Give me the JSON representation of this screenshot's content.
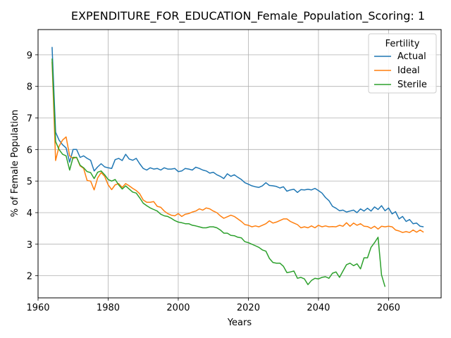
{
  "chart_data": {
    "type": "line",
    "title": "EXPENDITURE_FOR_EDUCATION_Female_Population_Scoring: 1",
    "xlabel": "Years",
    "ylabel": "% of Female Population",
    "xlim": [
      1960,
      2075
    ],
    "ylim": [
      1.3,
      9.8
    ],
    "xticks": [
      1960,
      1980,
      2000,
      2020,
      2040,
      2060
    ],
    "yticks": [
      2,
      3,
      4,
      5,
      6,
      7,
      8,
      9
    ],
    "grid": true,
    "legend": {
      "title": "Fertility",
      "placement": "top-right"
    },
    "series": [
      {
        "name": "Actual",
        "color": "#1f77b4",
        "points": [
          [
            1964,
            9.25
          ],
          [
            1965,
            6.55
          ],
          [
            1966,
            6.3
          ],
          [
            1967,
            6.15
          ],
          [
            1968,
            6.05
          ],
          [
            1969,
            5.6
          ],
          [
            1970,
            6.0
          ],
          [
            1971,
            6.0
          ],
          [
            1972,
            5.75
          ],
          [
            1973,
            5.8
          ],
          [
            1974,
            5.72
          ],
          [
            1975,
            5.66
          ],
          [
            1976,
            5.32
          ],
          [
            1977,
            5.45
          ],
          [
            1978,
            5.55
          ],
          [
            1979,
            5.45
          ],
          [
            1980,
            5.42
          ],
          [
            1981,
            5.4
          ],
          [
            1982,
            5.68
          ],
          [
            1983,
            5.72
          ],
          [
            1984,
            5.65
          ],
          [
            1985,
            5.85
          ],
          [
            1986,
            5.7
          ],
          [
            1987,
            5.66
          ],
          [
            1988,
            5.72
          ],
          [
            1989,
            5.55
          ],
          [
            1990,
            5.4
          ],
          [
            1991,
            5.35
          ],
          [
            1992,
            5.42
          ],
          [
            1993,
            5.38
          ],
          [
            1994,
            5.4
          ],
          [
            1995,
            5.35
          ],
          [
            1996,
            5.42
          ],
          [
            1997,
            5.38
          ],
          [
            1998,
            5.38
          ],
          [
            1999,
            5.4
          ],
          [
            2000,
            5.3
          ],
          [
            2001,
            5.32
          ],
          [
            2002,
            5.4
          ],
          [
            2003,
            5.38
          ],
          [
            2004,
            5.35
          ],
          [
            2005,
            5.44
          ],
          [
            2006,
            5.4
          ],
          [
            2007,
            5.35
          ],
          [
            2008,
            5.32
          ],
          [
            2009,
            5.25
          ],
          [
            2010,
            5.28
          ],
          [
            2011,
            5.2
          ],
          [
            2012,
            5.15
          ],
          [
            2013,
            5.08
          ],
          [
            2014,
            5.23
          ],
          [
            2015,
            5.15
          ],
          [
            2016,
            5.2
          ],
          [
            2017,
            5.12
          ],
          [
            2018,
            5.05
          ],
          [
            2019,
            4.95
          ],
          [
            2020,
            4.9
          ],
          [
            2021,
            4.85
          ],
          [
            2022,
            4.82
          ],
          [
            2023,
            4.8
          ],
          [
            2024,
            4.85
          ],
          [
            2025,
            4.95
          ],
          [
            2026,
            4.86
          ],
          [
            2027,
            4.85
          ],
          [
            2028,
            4.83
          ],
          [
            2029,
            4.78
          ],
          [
            2030,
            4.82
          ],
          [
            2031,
            4.68
          ],
          [
            2032,
            4.72
          ],
          [
            2033,
            4.74
          ],
          [
            2034,
            4.64
          ],
          [
            2035,
            4.73
          ],
          [
            2036,
            4.72
          ],
          [
            2037,
            4.74
          ],
          [
            2038,
            4.72
          ],
          [
            2039,
            4.77
          ],
          [
            2040,
            4.7
          ],
          [
            2041,
            4.62
          ],
          [
            2042,
            4.48
          ],
          [
            2043,
            4.38
          ],
          [
            2044,
            4.2
          ],
          [
            2045,
            4.14
          ],
          [
            2046,
            4.06
          ],
          [
            2047,
            4.08
          ],
          [
            2048,
            4.02
          ],
          [
            2049,
            4.05
          ],
          [
            2050,
            4.08
          ],
          [
            2051,
            4.0
          ],
          [
            2052,
            4.12
          ],
          [
            2053,
            4.05
          ],
          [
            2054,
            4.14
          ],
          [
            2055,
            4.05
          ],
          [
            2056,
            4.18
          ],
          [
            2057,
            4.1
          ],
          [
            2058,
            4.22
          ],
          [
            2059,
            4.06
          ],
          [
            2060,
            4.15
          ],
          [
            2061,
            3.96
          ],
          [
            2062,
            4.03
          ],
          [
            2063,
            3.8
          ],
          [
            2064,
            3.88
          ],
          [
            2065,
            3.72
          ],
          [
            2066,
            3.78
          ],
          [
            2067,
            3.65
          ],
          [
            2068,
            3.67
          ],
          [
            2069,
            3.57
          ],
          [
            2070,
            3.55
          ]
        ]
      },
      {
        "name": "Ideal",
        "color": "#ff7f0e",
        "points": [
          [
            1964,
            8.78
          ],
          [
            1965,
            5.65
          ],
          [
            1966,
            6.1
          ],
          [
            1967,
            6.3
          ],
          [
            1968,
            6.4
          ],
          [
            1969,
            5.8
          ],
          [
            1970,
            5.72
          ],
          [
            1971,
            5.75
          ],
          [
            1972,
            5.48
          ],
          [
            1973,
            5.4
          ],
          [
            1974,
            5.02
          ],
          [
            1975,
            5.0
          ],
          [
            1976,
            4.72
          ],
          [
            1977,
            5.1
          ],
          [
            1978,
            5.27
          ],
          [
            1979,
            5.15
          ],
          [
            1980,
            4.88
          ],
          [
            1981,
            4.73
          ],
          [
            1982,
            4.88
          ],
          [
            1983,
            4.92
          ],
          [
            1984,
            4.8
          ],
          [
            1985,
            4.92
          ],
          [
            1986,
            4.85
          ],
          [
            1987,
            4.77
          ],
          [
            1988,
            4.7
          ],
          [
            1989,
            4.6
          ],
          [
            1990,
            4.4
          ],
          [
            1991,
            4.33
          ],
          [
            1992,
            4.33
          ],
          [
            1993,
            4.35
          ],
          [
            1994,
            4.2
          ],
          [
            1995,
            4.17
          ],
          [
            1996,
            4.05
          ],
          [
            1997,
            3.97
          ],
          [
            1998,
            3.92
          ],
          [
            1999,
            3.9
          ],
          [
            2000,
            3.97
          ],
          [
            2001,
            3.88
          ],
          [
            2002,
            3.95
          ],
          [
            2003,
            3.97
          ],
          [
            2004,
            4.02
          ],
          [
            2005,
            4.05
          ],
          [
            2006,
            4.12
          ],
          [
            2007,
            4.08
          ],
          [
            2008,
            4.15
          ],
          [
            2009,
            4.12
          ],
          [
            2010,
            4.05
          ],
          [
            2011,
            4.0
          ],
          [
            2012,
            3.9
          ],
          [
            2013,
            3.82
          ],
          [
            2014,
            3.87
          ],
          [
            2015,
            3.92
          ],
          [
            2016,
            3.88
          ],
          [
            2017,
            3.8
          ],
          [
            2018,
            3.72
          ],
          [
            2019,
            3.62
          ],
          [
            2020,
            3.6
          ],
          [
            2021,
            3.55
          ],
          [
            2022,
            3.58
          ],
          [
            2023,
            3.55
          ],
          [
            2024,
            3.6
          ],
          [
            2025,
            3.65
          ],
          [
            2026,
            3.74
          ],
          [
            2027,
            3.67
          ],
          [
            2028,
            3.7
          ],
          [
            2029,
            3.75
          ],
          [
            2030,
            3.8
          ],
          [
            2031,
            3.8
          ],
          [
            2032,
            3.72
          ],
          [
            2033,
            3.67
          ],
          [
            2034,
            3.62
          ],
          [
            2035,
            3.52
          ],
          [
            2036,
            3.55
          ],
          [
            2037,
            3.52
          ],
          [
            2038,
            3.58
          ],
          [
            2039,
            3.52
          ],
          [
            2040,
            3.6
          ],
          [
            2041,
            3.55
          ],
          [
            2042,
            3.58
          ],
          [
            2043,
            3.55
          ],
          [
            2044,
            3.56
          ],
          [
            2045,
            3.55
          ],
          [
            2046,
            3.6
          ],
          [
            2047,
            3.57
          ],
          [
            2048,
            3.68
          ],
          [
            2049,
            3.57
          ],
          [
            2050,
            3.67
          ],
          [
            2051,
            3.6
          ],
          [
            2052,
            3.65
          ],
          [
            2053,
            3.57
          ],
          [
            2054,
            3.56
          ],
          [
            2055,
            3.5
          ],
          [
            2056,
            3.57
          ],
          [
            2057,
            3.48
          ],
          [
            2058,
            3.57
          ],
          [
            2059,
            3.55
          ],
          [
            2060,
            3.57
          ],
          [
            2061,
            3.55
          ],
          [
            2062,
            3.45
          ],
          [
            2063,
            3.42
          ],
          [
            2064,
            3.37
          ],
          [
            2065,
            3.4
          ],
          [
            2066,
            3.37
          ],
          [
            2067,
            3.45
          ],
          [
            2068,
            3.38
          ],
          [
            2069,
            3.45
          ],
          [
            2070,
            3.38
          ]
        ]
      },
      {
        "name": "Sterile",
        "color": "#2ca02c",
        "points": [
          [
            1964,
            8.88
          ],
          [
            1965,
            6.25
          ],
          [
            1966,
            6.0
          ],
          [
            1967,
            5.85
          ],
          [
            1968,
            5.8
          ],
          [
            1969,
            5.35
          ],
          [
            1970,
            5.75
          ],
          [
            1971,
            5.75
          ],
          [
            1972,
            5.5
          ],
          [
            1973,
            5.42
          ],
          [
            1974,
            5.3
          ],
          [
            1975,
            5.27
          ],
          [
            1976,
            5.08
          ],
          [
            1977,
            5.28
          ],
          [
            1978,
            5.32
          ],
          [
            1979,
            5.2
          ],
          [
            1980,
            5.05
          ],
          [
            1981,
            5.0
          ],
          [
            1982,
            5.05
          ],
          [
            1983,
            4.88
          ],
          [
            1984,
            4.75
          ],
          [
            1985,
            4.85
          ],
          [
            1986,
            4.75
          ],
          [
            1987,
            4.65
          ],
          [
            1988,
            4.62
          ],
          [
            1989,
            4.47
          ],
          [
            1990,
            4.3
          ],
          [
            1991,
            4.22
          ],
          [
            1992,
            4.15
          ],
          [
            1993,
            4.1
          ],
          [
            1994,
            4.05
          ],
          [
            1995,
            3.95
          ],
          [
            1996,
            3.9
          ],
          [
            1997,
            3.88
          ],
          [
            1998,
            3.82
          ],
          [
            1999,
            3.75
          ],
          [
            2000,
            3.7
          ],
          [
            2001,
            3.68
          ],
          [
            2002,
            3.65
          ],
          [
            2003,
            3.65
          ],
          [
            2004,
            3.6
          ],
          [
            2005,
            3.58
          ],
          [
            2006,
            3.55
          ],
          [
            2007,
            3.52
          ],
          [
            2008,
            3.52
          ],
          [
            2009,
            3.55
          ],
          [
            2010,
            3.55
          ],
          [
            2011,
            3.52
          ],
          [
            2012,
            3.45
          ],
          [
            2013,
            3.35
          ],
          [
            2014,
            3.35
          ],
          [
            2015,
            3.28
          ],
          [
            2016,
            3.27
          ],
          [
            2017,
            3.22
          ],
          [
            2018,
            3.2
          ],
          [
            2019,
            3.08
          ],
          [
            2020,
            3.05
          ],
          [
            2021,
            3.0
          ],
          [
            2022,
            2.95
          ],
          [
            2023,
            2.9
          ],
          [
            2024,
            2.82
          ],
          [
            2025,
            2.78
          ],
          [
            2026,
            2.55
          ],
          [
            2027,
            2.42
          ],
          [
            2028,
            2.4
          ],
          [
            2029,
            2.4
          ],
          [
            2030,
            2.3
          ],
          [
            2031,
            2.1
          ],
          [
            2032,
            2.12
          ],
          [
            2033,
            2.15
          ],
          [
            2034,
            1.92
          ],
          [
            2035,
            1.95
          ],
          [
            2036,
            1.9
          ],
          [
            2037,
            1.72
          ],
          [
            2038,
            1.85
          ],
          [
            2039,
            1.92
          ],
          [
            2040,
            1.9
          ],
          [
            2041,
            1.95
          ],
          [
            2042,
            1.97
          ],
          [
            2043,
            1.92
          ],
          [
            2044,
            2.08
          ],
          [
            2045,
            2.12
          ],
          [
            2046,
            1.95
          ],
          [
            2047,
            2.15
          ],
          [
            2048,
            2.35
          ],
          [
            2049,
            2.4
          ],
          [
            2050,
            2.32
          ],
          [
            2051,
            2.38
          ],
          [
            2052,
            2.22
          ],
          [
            2053,
            2.57
          ],
          [
            2054,
            2.57
          ],
          [
            2055,
            2.9
          ],
          [
            2056,
            3.05
          ],
          [
            2057,
            3.22
          ],
          [
            2058,
            2.03
          ],
          [
            2059,
            1.65
          ]
        ]
      }
    ]
  }
}
